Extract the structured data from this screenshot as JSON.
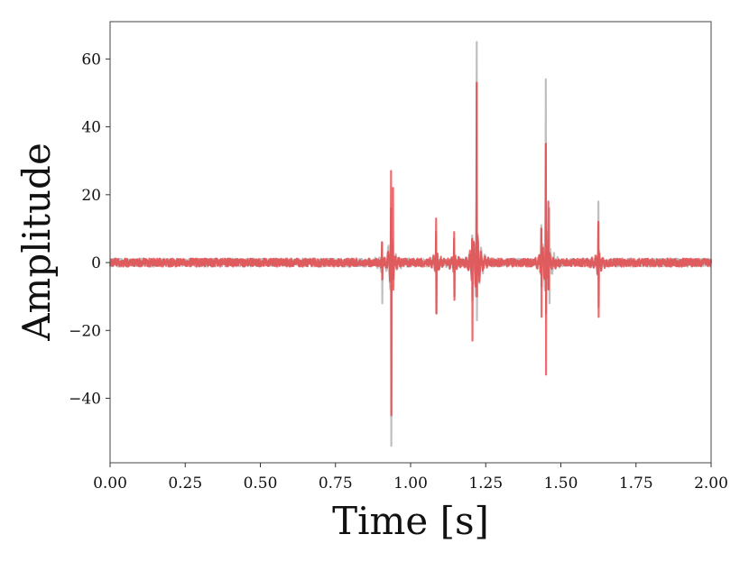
{
  "chart_data": {
    "type": "line",
    "title": "",
    "xlabel": "Time [s]",
    "ylabel": "Amplitude",
    "xlim": [
      0.0,
      2.0
    ],
    "ylim": [
      -59,
      71
    ],
    "grid": false,
    "legend": "none",
    "x_ticks": [
      0.0,
      0.25,
      0.5,
      0.75,
      1.0,
      1.25,
      1.5,
      1.75,
      2.0
    ],
    "x_tick_labels": [
      "0.00",
      "0.25",
      "0.50",
      "0.75",
      "1.00",
      "1.25",
      "1.50",
      "1.75",
      "2.00"
    ],
    "y_ticks": [
      -40,
      -20,
      0,
      20,
      40,
      60
    ],
    "y_tick_labels": [
      "−40",
      "−20",
      "0",
      "20",
      "40",
      "60"
    ],
    "noise_amplitude": 1.2,
    "series": [
      {
        "color": "#a9a9a9",
        "opacity": 0.75,
        "events": [
          {
            "t": 0.905,
            "peak": 6,
            "trough": -12
          },
          {
            "t": 0.935,
            "peak": 16,
            "trough": -54
          },
          {
            "t": 1.085,
            "peak": 9,
            "trough": -15
          },
          {
            "t": 1.145,
            "peak": 7,
            "trough": -10
          },
          {
            "t": 1.205,
            "peak": 8,
            "trough": -11
          },
          {
            "t": 1.22,
            "peak": 65,
            "trough": -17
          },
          {
            "t": 1.435,
            "peak": 11,
            "trough": -7
          },
          {
            "t": 1.45,
            "peak": 54,
            "trough": -15
          },
          {
            "t": 1.462,
            "peak": 16,
            "trough": -12
          },
          {
            "t": 1.625,
            "peak": 18,
            "trough": -13
          }
        ]
      },
      {
        "color": "#e8393d",
        "opacity": 0.75,
        "events": [
          {
            "t": 0.905,
            "peak": 6,
            "trough": -5
          },
          {
            "t": 0.935,
            "peak": 27,
            "trough": -45
          },
          {
            "t": 0.942,
            "peak": 22,
            "trough": -8
          },
          {
            "t": 1.085,
            "peak": 13,
            "trough": -15
          },
          {
            "t": 1.145,
            "peak": 9,
            "trough": -11
          },
          {
            "t": 1.205,
            "peak": 7,
            "trough": -23
          },
          {
            "t": 1.22,
            "peak": 53,
            "trough": -10
          },
          {
            "t": 1.435,
            "peak": 10,
            "trough": -16
          },
          {
            "t": 1.45,
            "peak": 35,
            "trough": -33
          },
          {
            "t": 1.458,
            "peak": 18,
            "trough": -8
          },
          {
            "t": 1.625,
            "peak": 12,
            "trough": -16
          }
        ]
      }
    ]
  }
}
